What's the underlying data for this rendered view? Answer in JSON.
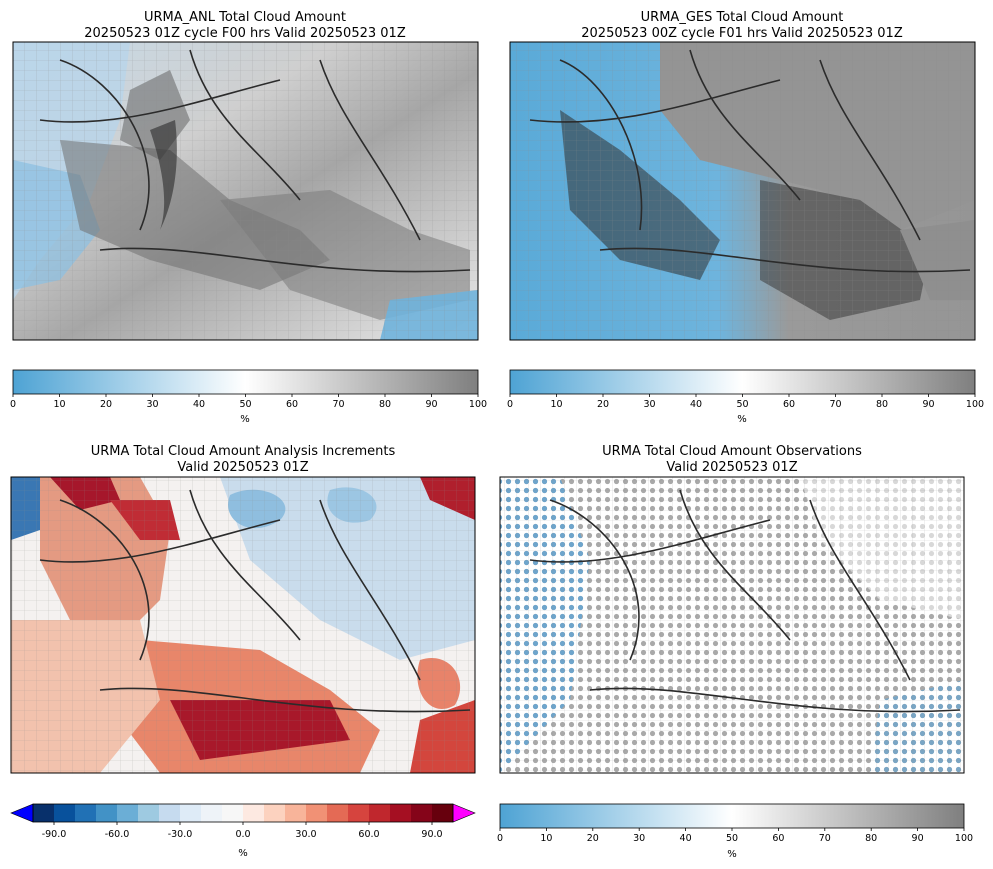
{
  "chart_data": [
    {
      "type": "map",
      "title": "URMA_ANL Total Cloud Amount",
      "subtitle": "20250523 01Z cycle F00 hrs Valid 20250523 01Z",
      "colorbar": {
        "min": 0,
        "max": 100,
        "ticks": [
          0,
          10,
          20,
          30,
          40,
          50,
          60,
          70,
          80,
          90,
          100
        ],
        "label": "%",
        "cmap": "blue-white-gray"
      }
    },
    {
      "type": "map",
      "title": "URMA_GES Total Cloud Amount",
      "subtitle": "20250523 00Z cycle F01 hrs Valid 20250523 01Z",
      "colorbar": {
        "min": 0,
        "max": 100,
        "ticks": [
          0,
          10,
          20,
          30,
          40,
          50,
          60,
          70,
          80,
          90,
          100
        ],
        "label": "%",
        "cmap": "blue-white-gray"
      }
    },
    {
      "type": "map",
      "title": "URMA Total Cloud Amount Analysis Increments",
      "subtitle": "Valid 20250523 01Z",
      "colorbar": {
        "min": -100,
        "max": 100,
        "ticks": [
          -90.0,
          -60.0,
          -30.0,
          0.0,
          30.0,
          60.0,
          90.0
        ],
        "tick_labels": [
          "-90.0",
          "-60.0",
          "-30.0",
          "0.0",
          "30.0",
          "60.0",
          "90.0"
        ],
        "label": "%",
        "cmap": "blue-white-red",
        "extend": "both",
        "levels": [
          -100,
          -90,
          -80,
          -70,
          -60,
          -50,
          -40,
          -30,
          -20,
          -10,
          0,
          10,
          20,
          30,
          40,
          50,
          60,
          70,
          80,
          90,
          100
        ]
      }
    },
    {
      "type": "map",
      "title": "URMA Total Cloud Amount Observations",
      "subtitle": "Valid 20250523 01Z",
      "colorbar": {
        "min": 0,
        "max": 100,
        "ticks": [
          0,
          10,
          20,
          30,
          40,
          50,
          60,
          70,
          80,
          90,
          100
        ],
        "label": "%",
        "cmap": "blue-white-gray"
      }
    }
  ],
  "colors": {
    "low": "#4ea3d4",
    "mid": "#ffffff",
    "high": "#7f7f7f",
    "inc_neg": [
      "#08306b",
      "#08519c",
      "#2171b5",
      "#4292c6",
      "#6baed6",
      "#9ecae1",
      "#c6dbef",
      "#deebf7",
      "#eef3f8",
      "#f7f7f7"
    ],
    "inc_pos": [
      "#fde9e1",
      "#fcd2bf",
      "#f8b49a",
      "#f19175",
      "#e46a55",
      "#d6443e",
      "#c0272d",
      "#a50f22",
      "#850419",
      "#67000d"
    ],
    "extend_low": "#0000ff",
    "extend_high": "#ff00ff"
  }
}
